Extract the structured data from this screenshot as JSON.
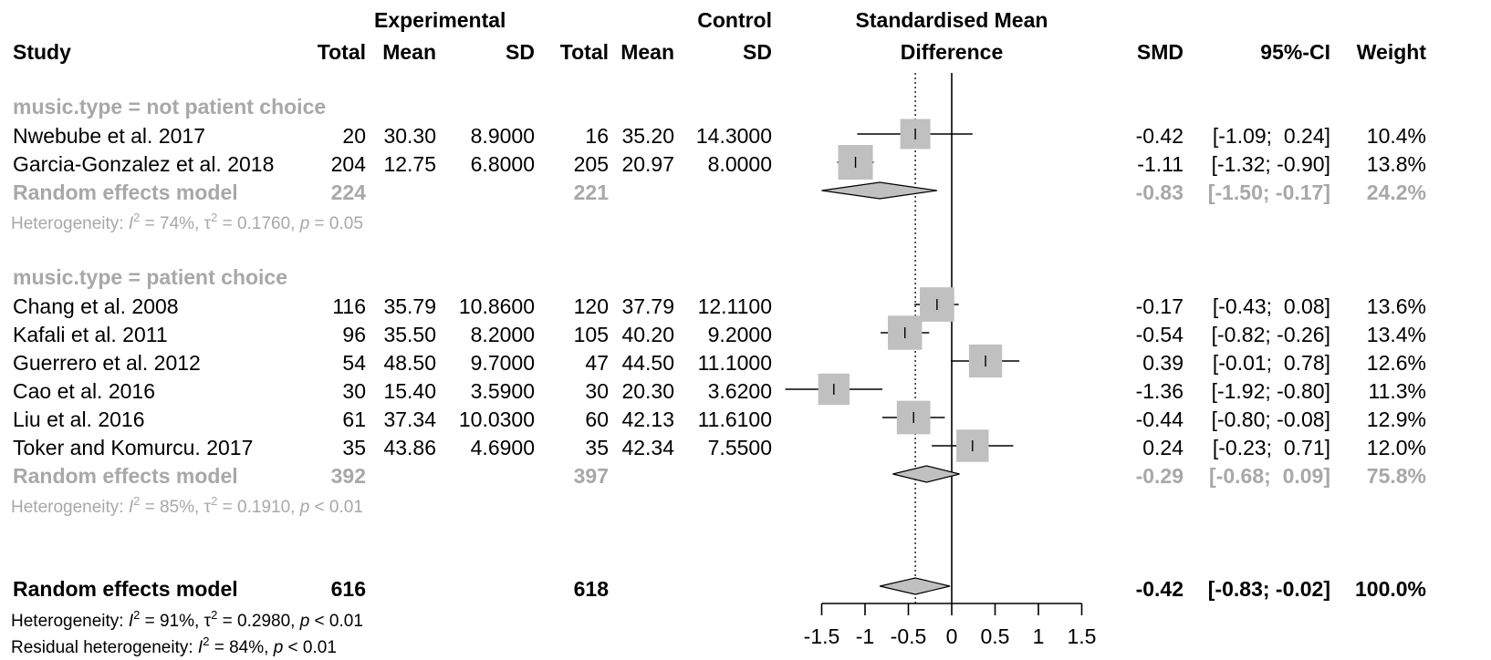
{
  "headers": {
    "study": "Study",
    "experimental": "Experimental",
    "control": "Control",
    "total": "Total",
    "mean": "Mean",
    "sd": "SD",
    "smd_line1": "Standardised Mean",
    "smd_line2": "Difference",
    "smd": "SMD",
    "ci": "95%-CI",
    "weight": "Weight"
  },
  "chart_data": {
    "type": "forest",
    "xaxis": {
      "ticks": [
        -1.5,
        -1,
        -0.5,
        0,
        0.5,
        1,
        1.5
      ],
      "tick_labels": [
        "-1.5",
        "-1",
        "-0.5",
        "0",
        "0.5",
        "1",
        "1.5"
      ],
      "xlim": [
        -1.5,
        1.5
      ],
      "reference_line": 0,
      "dotted_line": -0.42
    },
    "groups": [
      {
        "label": "music.type = not patient choice",
        "studies": [
          {
            "study": "Nwebube et al. 2017",
            "exp_total": "20",
            "exp_mean": "30.30",
            "exp_sd": "8.9000",
            "ctl_total": "16",
            "ctl_mean": "35.20",
            "ctl_sd": "14.3000",
            "smd": -0.42,
            "lo": -1.09,
            "hi": 0.24,
            "smd_text": "-0.42",
            "ci_text": "[-1.09;  0.24]",
            "weight": 10.4,
            "weight_text": "10.4%"
          },
          {
            "study": "Garcia-Gonzalez et al. 2018",
            "exp_total": "204",
            "exp_mean": "12.75",
            "exp_sd": "6.8000",
            "ctl_total": "205",
            "ctl_mean": "20.97",
            "ctl_sd": "8.0000",
            "smd": -1.11,
            "lo": -1.32,
            "hi": -0.9,
            "smd_text": "-1.11",
            "ci_text": "[-1.32; -0.90]",
            "weight": 13.8,
            "weight_text": "13.8%"
          }
        ],
        "model": {
          "label": "Random effects model",
          "exp_total": "224",
          "ctl_total": "221",
          "smd": -0.83,
          "lo": -1.5,
          "hi": -0.17,
          "smd_text": "-0.83",
          "ci_text": "[-1.50; -0.17]",
          "weight_text": "24.2%"
        },
        "heterogeneity": {
          "prefix": "Heterogeneity: ",
          "i2_label": "I",
          "i2_value": " = 74%, ",
          "tau_label": "τ",
          "tau_value": " = 0.1760, ",
          "p_label": "p",
          "p_value": " = 0.05"
        }
      },
      {
        "label": "music.type = patient choice",
        "studies": [
          {
            "study": "Chang et al. 2008",
            "exp_total": "116",
            "exp_mean": "35.79",
            "exp_sd": "10.8600",
            "ctl_total": "120",
            "ctl_mean": "37.79",
            "ctl_sd": "12.1100",
            "smd": -0.17,
            "lo": -0.43,
            "hi": 0.08,
            "smd_text": "-0.17",
            "ci_text": "[-0.43;  0.08]",
            "weight": 13.6,
            "weight_text": "13.6%"
          },
          {
            "study": "Kafali et al. 2011",
            "exp_total": "96",
            "exp_mean": "35.50",
            "exp_sd": "8.2000",
            "ctl_total": "105",
            "ctl_mean": "40.20",
            "ctl_sd": "9.2000",
            "smd": -0.54,
            "lo": -0.82,
            "hi": -0.26,
            "smd_text": "-0.54",
            "ci_text": "[-0.82; -0.26]",
            "weight": 13.4,
            "weight_text": "13.4%"
          },
          {
            "study": "Guerrero et al. 2012",
            "exp_total": "54",
            "exp_mean": "48.50",
            "exp_sd": "9.7000",
            "ctl_total": "47",
            "ctl_mean": "44.50",
            "ctl_sd": "11.1000",
            "smd": 0.39,
            "lo": -0.01,
            "hi": 0.78,
            "smd_text": "0.39",
            "ci_text": "[-0.01;  0.78]",
            "weight": 12.6,
            "weight_text": "12.6%"
          },
          {
            "study": "Cao et al. 2016",
            "exp_total": "30",
            "exp_mean": "15.40",
            "exp_sd": "3.5900",
            "ctl_total": "30",
            "ctl_mean": "20.30",
            "ctl_sd": "3.6200",
            "smd": -1.36,
            "lo": -1.92,
            "hi": -0.8,
            "smd_text": "-1.36",
            "ci_text": "[-1.92; -0.80]",
            "weight": 11.3,
            "weight_text": "11.3%"
          },
          {
            "study": "Liu et al. 2016",
            "exp_total": "61",
            "exp_mean": "37.34",
            "exp_sd": "10.0300",
            "ctl_total": "60",
            "ctl_mean": "42.13",
            "ctl_sd": "11.6100",
            "smd": -0.44,
            "lo": -0.8,
            "hi": -0.08,
            "smd_text": "-0.44",
            "ci_text": "[-0.80; -0.08]",
            "weight": 12.9,
            "weight_text": "12.9%"
          },
          {
            "study": "Toker and Komurcu. 2017",
            "exp_total": "35",
            "exp_mean": "43.86",
            "exp_sd": "4.6900",
            "ctl_total": "35",
            "ctl_mean": "42.34",
            "ctl_sd": "7.5500",
            "smd": 0.24,
            "lo": -0.23,
            "hi": 0.71,
            "smd_text": "0.24",
            "ci_text": "[-0.23;  0.71]",
            "weight": 12.0,
            "weight_text": "12.0%"
          }
        ],
        "model": {
          "label": "Random effects model",
          "exp_total": "392",
          "ctl_total": "397",
          "smd": -0.29,
          "lo": -0.68,
          "hi": 0.09,
          "smd_text": "-0.29",
          "ci_text": "[-0.68;  0.09]",
          "weight_text": "75.8%"
        },
        "heterogeneity": {
          "prefix": "Heterogeneity: ",
          "i2_label": "I",
          "i2_value": " = 85%, ",
          "tau_label": "τ",
          "tau_value": " = 0.1910, ",
          "p_label": "p",
          "p_value": " < 0.01"
        }
      }
    ],
    "overall": {
      "model": {
        "label": "Random effects model",
        "exp_total": "616",
        "ctl_total": "618",
        "smd": -0.42,
        "lo": -0.83,
        "hi": -0.02,
        "smd_text": "-0.42",
        "ci_text": "[-0.83; -0.02]",
        "weight_text": "100.0%"
      },
      "heterogeneity": {
        "prefix": "Heterogeneity: ",
        "i2_label": "I",
        "i2_value": " = 91%, ",
        "tau_label": "τ",
        "tau_value": " = 0.2980, ",
        "p_label": "p",
        "p_value": " < 0.01"
      },
      "residual": {
        "prefix": "Residual heterogeneity: ",
        "i2_label": "I",
        "i2_value": " = 84%, ",
        "p_label": "p",
        "p_value": " < 0.01"
      }
    }
  },
  "colors": {
    "summary_text": "#a8a8a8",
    "box_fill": "#c0c0c0",
    "diamond_fill": "#c0c0c0",
    "line": "#000000"
  }
}
